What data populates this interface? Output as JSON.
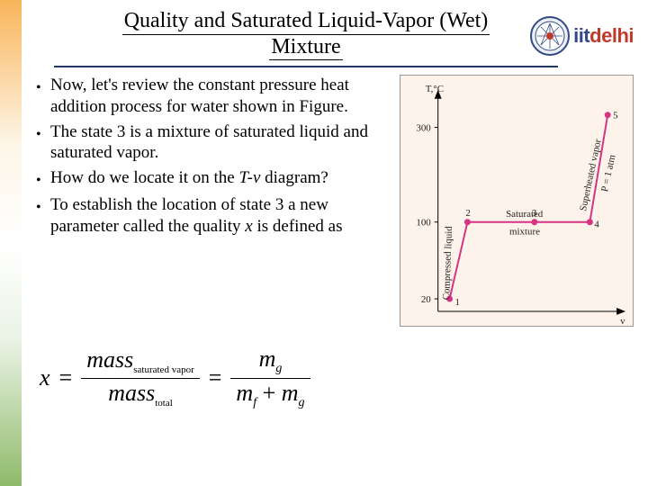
{
  "title_line1": "Quality and Saturated Liquid-Vapor (Wet)",
  "title_line2": "Mixture",
  "logo": {
    "text_left": "iit",
    "text_right": "delhi"
  },
  "bullets": [
    {
      "pre": "Now, let's review the constant pressure heat addition process for water shown in Figure."
    },
    {
      "pre": "The state 3 is a mixture of saturated liquid and saturated vapor."
    },
    {
      "pre": "How do we locate it on the ",
      "ital": "T-v",
      "post": " diagram?"
    },
    {
      "pre": "To establish the location of state 3 a new parameter called the quality ",
      "ital": "x",
      "post": " is defined as"
    }
  ],
  "figure": {
    "bg": "#fdf3ea",
    "axis_color": "#000000",
    "curve_color": "#d63384",
    "y_label": "T,°C",
    "x_label": "v",
    "y_ticks": [
      {
        "v": 20,
        "y": 250
      },
      {
        "v": 100,
        "y": 164
      },
      {
        "v": 300,
        "y": 58
      }
    ],
    "points": [
      {
        "n": 1,
        "x": 55,
        "y": 250
      },
      {
        "n": 2,
        "x": 75,
        "y": 164
      },
      {
        "n": 3,
        "x": 150,
        "y": 164
      },
      {
        "n": 4,
        "x": 212,
        "y": 164
      },
      {
        "n": 5,
        "x": 232,
        "y": 44
      }
    ],
    "labels": {
      "pressure": "P = 1 atm",
      "saturated": "Saturated",
      "mixture": "mixture",
      "compressed": "Compressed liquid",
      "superheated": "Superheated vapor"
    }
  },
  "equation": {
    "lhs": "x",
    "frac1": {
      "num_pre": "mass",
      "num_sub": "saturated vapor",
      "den_pre": "mass",
      "den_sub": "total"
    },
    "frac2": {
      "num": "m",
      "num_sub": "g",
      "den_l": "m",
      "den_l_sub": "f",
      "den_plus": " + ",
      "den_r": "m",
      "den_r_sub": "g"
    }
  }
}
